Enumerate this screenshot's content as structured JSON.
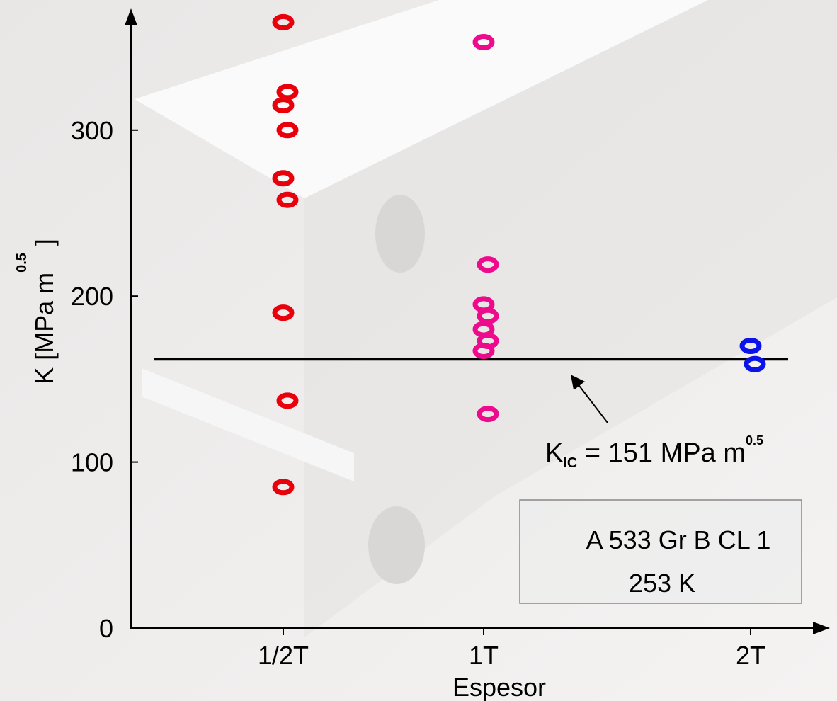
{
  "chart_data": {
    "type": "scatter",
    "x_label": "Espesor",
    "y_label": {
      "text": "K [MPa m",
      "sup": "0.5",
      "end": "]"
    },
    "categories": [
      "1/2T",
      "1T",
      "2T"
    ],
    "series": [
      {
        "color": "#e8000b",
        "values": [
          365,
          323,
          315,
          300,
          271,
          258,
          190,
          137,
          85
        ]
      },
      {
        "color": "#ee0a8c",
        "values": [
          353,
          219,
          195,
          188,
          180,
          173,
          167,
          129
        ]
      },
      {
        "color": "#0a14e8",
        "values": [
          170,
          159
        ]
      }
    ],
    "ylim": [
      0,
      372
    ],
    "yticks": [
      0,
      100,
      200,
      300
    ],
    "reference_line": 162,
    "annotation": {
      "main": "K",
      "sub": "IC",
      "text": " = 151 MPa m",
      "sup": "0.5"
    },
    "box": [
      "A 533 Gr B CL 1",
      "253 K"
    ]
  }
}
